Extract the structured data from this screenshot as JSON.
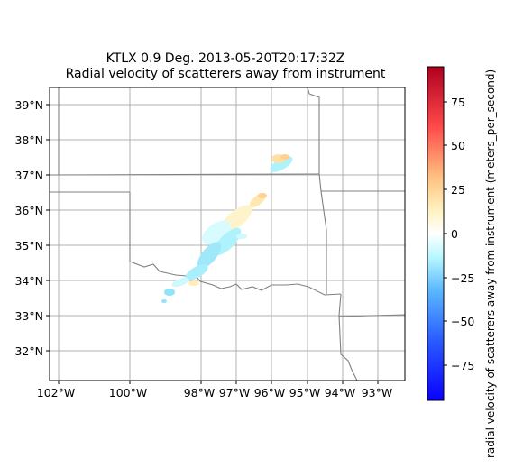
{
  "title_line1": "KTLX 0.9 Deg. 2013-05-20T20:17:32Z",
  "title_line2": "Radial velocity of scatterers away from instrument",
  "colorbar": {
    "label": "radial velocity of scatterers away from instrument (meters_per_second)",
    "range": [
      -95,
      95
    ],
    "ticks": [
      "75",
      "50",
      "25",
      "0",
      "−25",
      "−50",
      "−75"
    ],
    "tick_values": [
      75,
      50,
      25,
      0,
      -25,
      -50,
      -75
    ],
    "colormap": "jet-like (blue-cyan-white-yellow-red)",
    "colors": [
      "#0a00ff",
      "#3fa0ff",
      "#a0f0ff",
      "#ffffff",
      "#ffe0a0",
      "#ff5a5a",
      "#b00020"
    ]
  },
  "map": {
    "lon_range": [
      -102.3,
      -92.3
    ],
    "lat_range": [
      31.2,
      39.5
    ],
    "lon_ticks": [
      "102°W",
      "100°W",
      "98°W",
      "97°W",
      "96°W",
      "95°W",
      "94°W",
      "93°W"
    ],
    "lon_tick_values": [
      -102,
      -100,
      -98,
      -97,
      -96,
      -95,
      -94,
      -93
    ],
    "lat_ticks": [
      "39°N",
      "38°N",
      "37°N",
      "36°N",
      "35°N",
      "34°N",
      "33°N",
      "32°N"
    ],
    "lat_tick_values": [
      39,
      38,
      37,
      36,
      35,
      34,
      33,
      32
    ],
    "grid": true,
    "border_color": "#808080",
    "grid_color": "#b0b0b0"
  }
}
